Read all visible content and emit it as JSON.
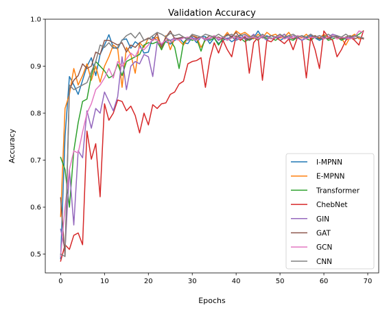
{
  "chart_data": {
    "type": "line",
    "title": "Validation Accuracy",
    "xlabel": "Epochs",
    "ylabel": "Accuracy",
    "xlim": [
      -3.5,
      72.5
    ],
    "ylim": [
      0.46,
      1.0
    ],
    "xticks": [
      0,
      10,
      20,
      30,
      40,
      50,
      60,
      70
    ],
    "yticks": [
      0.5,
      0.6,
      0.7,
      0.8,
      0.9,
      1.0
    ],
    "xtick_labels": [
      "0",
      "10",
      "20",
      "30",
      "40",
      "50",
      "60",
      "70"
    ],
    "ytick_labels": [
      "0.5",
      "0.6",
      "0.7",
      "0.8",
      "0.9",
      "1.0"
    ],
    "grid": false,
    "legend_position": "lower right",
    "series": [
      {
        "name": "I-MPNN",
        "color": "#1f77b4",
        "values": [
          0.49,
          0.75,
          0.878,
          0.86,
          0.84,
          0.87,
          0.9,
          0.918,
          0.88,
          0.925,
          0.945,
          0.967,
          0.94,
          0.937,
          0.956,
          0.958,
          0.938,
          0.952,
          0.945,
          0.928,
          0.93,
          0.962,
          0.955,
          0.948,
          0.952,
          0.947,
          0.955,
          0.96,
          0.95,
          0.948,
          0.962,
          0.95,
          0.962,
          0.963,
          0.948,
          0.96,
          0.948,
          0.955,
          0.96,
          0.952,
          0.958,
          0.968,
          0.958,
          0.955,
          0.96,
          0.975,
          0.96,
          0.965,
          0.958,
          0.962,
          0.955,
          0.96,
          0.965,
          0.958,
          0.962,
          0.955,
          0.96,
          0.965,
          0.96,
          0.955,
          0.96,
          0.958,
          0.962,
          0.965,
          0.96,
          0.958,
          0.96,
          0.965,
          0.962,
          0.96
        ]
      },
      {
        "name": "E-MPNN",
        "color": "#ff7f0e",
        "values": [
          0.58,
          0.81,
          0.84,
          0.895,
          0.86,
          0.88,
          0.905,
          0.87,
          0.9,
          0.866,
          0.9,
          0.92,
          0.945,
          0.938,
          0.855,
          0.94,
          0.925,
          0.885,
          0.95,
          0.94,
          0.96,
          0.955,
          0.962,
          0.935,
          0.965,
          0.935,
          0.96,
          0.955,
          0.945,
          0.96,
          0.965,
          0.962,
          0.94,
          0.955,
          0.96,
          0.965,
          0.955,
          0.96,
          0.972,
          0.96,
          0.975,
          0.968,
          0.972,
          0.965,
          0.958,
          0.968,
          0.96,
          0.972,
          0.965,
          0.968,
          0.96,
          0.962,
          0.972,
          0.958,
          0.965,
          0.96,
          0.968,
          0.958,
          0.965,
          0.96,
          0.968,
          0.96,
          0.965,
          0.958,
          0.96,
          0.945,
          0.962,
          0.968,
          0.958,
          0.96
        ]
      },
      {
        "name": "Transformer",
        "color": "#2ca02c",
        "values": [
          0.706,
          0.68,
          0.6,
          0.72,
          0.78,
          0.825,
          0.83,
          0.88,
          0.91,
          0.9,
          0.89,
          0.875,
          0.88,
          0.905,
          0.88,
          0.91,
          0.915,
          0.92,
          0.925,
          0.945,
          0.95,
          0.948,
          0.952,
          0.935,
          0.955,
          0.955,
          0.94,
          0.895,
          0.95,
          0.96,
          0.955,
          0.958,
          0.932,
          0.96,
          0.955,
          0.96,
          0.945,
          0.96,
          0.955,
          0.962,
          0.955,
          0.96,
          0.952,
          0.958,
          0.962,
          0.955,
          0.965,
          0.958,
          0.96,
          0.955,
          0.962,
          0.968,
          0.958,
          0.955,
          0.962,
          0.965,
          0.958,
          0.955,
          0.962,
          0.958,
          0.965,
          0.955,
          0.958,
          0.962,
          0.955,
          0.96,
          0.958,
          0.962,
          0.968,
          0.975
        ]
      },
      {
        "name": "ChebNet",
        "color": "#d62728",
        "values": [
          0.485,
          0.52,
          0.51,
          0.54,
          0.545,
          0.52,
          0.762,
          0.702,
          0.735,
          0.622,
          0.82,
          0.785,
          0.8,
          0.828,
          0.825,
          0.805,
          0.815,
          0.795,
          0.758,
          0.8,
          0.775,
          0.818,
          0.81,
          0.82,
          0.822,
          0.84,
          0.845,
          0.862,
          0.868,
          0.905,
          0.91,
          0.912,
          0.918,
          0.855,
          0.915,
          0.95,
          0.928,
          0.955,
          0.935,
          0.92,
          0.965,
          0.955,
          0.965,
          0.885,
          0.95,
          0.962,
          0.87,
          0.955,
          0.952,
          0.962,
          0.955,
          0.948,
          0.958,
          0.935,
          0.962,
          0.955,
          0.875,
          0.962,
          0.935,
          0.895,
          0.975,
          0.962,
          0.955,
          0.92,
          0.935,
          0.955,
          0.962,
          0.955,
          0.945,
          0.975
        ]
      },
      {
        "name": "GIN",
        "color": "#9467bd",
        "values": [
          0.553,
          0.51,
          0.68,
          0.562,
          0.72,
          0.705,
          0.805,
          0.768,
          0.81,
          0.8,
          0.845,
          0.825,
          0.805,
          0.835,
          0.92,
          0.85,
          0.9,
          0.91,
          0.905,
          0.925,
          0.92,
          0.878,
          0.95,
          0.945,
          0.96,
          0.955,
          0.96,
          0.958,
          0.962,
          0.955,
          0.96,
          0.958,
          0.962,
          0.955,
          0.958,
          0.965,
          0.955,
          0.962,
          0.958,
          0.965,
          0.955,
          0.962,
          0.958,
          0.96,
          0.968,
          0.958,
          0.962,
          0.955,
          0.965,
          0.96,
          0.962,
          0.968,
          0.958,
          0.965,
          0.96,
          0.955,
          0.962,
          0.968,
          0.96,
          0.965,
          0.958,
          0.962,
          0.968,
          0.965,
          0.958,
          0.962,
          0.96,
          0.965,
          0.962,
          0.958
        ]
      },
      {
        "name": "GAT",
        "color": "#8c564b",
        "values": [
          0.62,
          0.495,
          0.85,
          0.87,
          0.88,
          0.905,
          0.895,
          0.9,
          0.93,
          0.925,
          0.955,
          0.955,
          0.95,
          0.945,
          0.95,
          0.93,
          0.945,
          0.94,
          0.95,
          0.955,
          0.96,
          0.955,
          0.97,
          0.94,
          0.962,
          0.975,
          0.958,
          0.96,
          0.962,
          0.958,
          0.965,
          0.96,
          0.962,
          0.958,
          0.965,
          0.96,
          0.962,
          0.958,
          0.968,
          0.962,
          0.972,
          0.958,
          0.962,
          0.955,
          0.962,
          0.958,
          0.965,
          0.962,
          0.958,
          0.962,
          0.968,
          0.958,
          0.962,
          0.958,
          0.965,
          0.962,
          0.958,
          0.962,
          0.965,
          0.958,
          0.962,
          0.958,
          0.965,
          0.962,
          0.958,
          0.962,
          0.965,
          0.958,
          0.962,
          0.958
        ]
      },
      {
        "name": "GCN",
        "color": "#e377c2",
        "values": [
          0.495,
          0.6,
          0.68,
          0.72,
          0.715,
          0.76,
          0.8,
          0.82,
          0.85,
          0.86,
          0.875,
          0.895,
          0.875,
          0.91,
          0.9,
          0.915,
          0.928,
          0.92,
          0.94,
          0.935,
          0.945,
          0.958,
          0.955,
          0.948,
          0.955,
          0.95,
          0.958,
          0.955,
          0.96,
          0.962,
          0.958,
          0.955,
          0.962,
          0.958,
          0.96,
          0.965,
          0.958,
          0.962,
          0.955,
          0.96,
          0.962,
          0.958,
          0.965,
          0.96,
          0.962,
          0.958,
          0.965,
          0.962,
          0.958,
          0.962,
          0.965,
          0.958,
          0.962,
          0.96,
          0.965,
          0.962,
          0.958,
          0.962,
          0.96,
          0.965,
          0.958,
          0.962,
          0.965,
          0.958,
          0.962,
          0.96,
          0.958,
          0.962,
          0.975,
          0.972
        ]
      },
      {
        "name": "CNN",
        "color": "#7f7f7f",
        "values": [
          0.5,
          0.495,
          0.86,
          0.85,
          0.855,
          0.86,
          0.865,
          0.888,
          0.91,
          0.945,
          0.94,
          0.95,
          0.938,
          0.94,
          0.955,
          0.965,
          0.97,
          0.96,
          0.972,
          0.955,
          0.958,
          0.965,
          0.972,
          0.968,
          0.962,
          0.97,
          0.965,
          0.968,
          0.962,
          0.958,
          0.968,
          0.965,
          0.962,
          0.968,
          0.965,
          0.962,
          0.968,
          0.962,
          0.965,
          0.968,
          0.962,
          0.965,
          0.968,
          0.962,
          0.965,
          0.962,
          0.968,
          0.962,
          0.965,
          0.962,
          0.968,
          0.962,
          0.965,
          0.968,
          0.962,
          0.965,
          0.962,
          0.968,
          0.962,
          0.965,
          0.962,
          0.968,
          0.962,
          0.965,
          0.962,
          0.968,
          0.962,
          0.965,
          0.962,
          0.96
        ]
      }
    ]
  }
}
